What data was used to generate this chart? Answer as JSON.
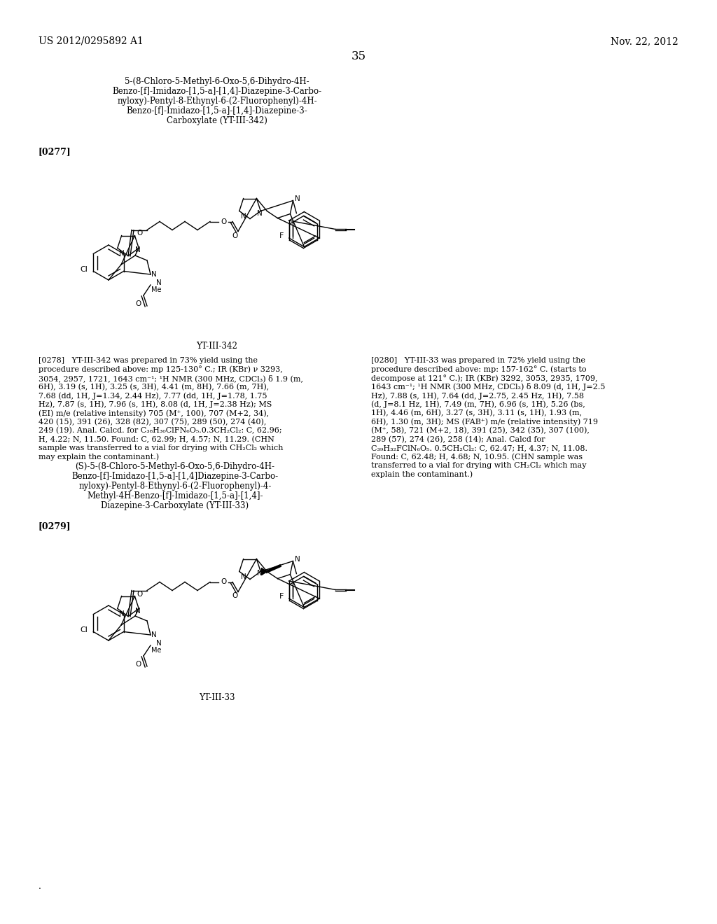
{
  "bg_color": "#ffffff",
  "header_left": "US 2012/0295892 A1",
  "header_right": "Nov. 22, 2012",
  "page_number": "35",
  "title1_lines": [
    "5-(8-Chloro-5-Methyl-6-Oxo-5,6-Dihydro-4H-",
    "Benzo-[f]-Imidazo-[1,5-a]-[1,4]-Diazepine-3-Carbo-",
    "nyloxy)-Pentyl-8-Ethynyl-6-(2-Fluorophenyl)-4H-",
    "Benzo-[f]-Imidazo-[1,5-a]-[1,4]-Diazepine-3-",
    "Carboxylate (YT-III-342)"
  ],
  "label_277": "[0277]",
  "compound_label1": "YT-III-342",
  "para_278_left": "[0278]   YT-III-342 was prepared in 73% yield using the procedure described above: mp 125-130° C.; IR (KBr) ν 3293, 3054, 2957, 1721, 1643 cm⁻¹; ¹H NMR (300 MHz, CDCl₃) δ 1.9 (m, 6H), 3.19 (s, 1H), 3.25 (s, 3H), 4.41 (m, 8H), 7.66 (m, 7H), 7.68 (dd, 1H, J=1.34, 2.44 Hz), 7.77 (dd, 1H, J=1.78, 1.75 Hz), 7.87 (s, 1H), 7.96 (s, 1H), 8.08 (d, 1H, J=2.38 Hz); MS (EI) m/e (relative intensity) 705 (M⁺, 100), 707 (M+2, 34), 420 (15), 391 (26), 328 (82), 307 (75), 289 (50), 274 (40), 249 (19). Anal. Calcd. for C₃₈H₃₀ClFN₆O₅.0.3CH₂Cl₂: C, 62.96; H, 4.22; N, 11.50. Found: C, 62.99; H, 4.57; N, 11.29. (CHN sample was transferred to a vial for drying with CH₂Cl₂ which may explain the contaminant.)",
  "para_280_right": "[0280]   YT-III-33 was prepared in 72% yield using the procedure described above: mp: 157-162° C. (starts to decompose at 121° C.); IR (KBr) 3292, 3053, 2935, 1709, 1643 cm⁻¹; ¹H NMR (300 MHz, CDCl₃) δ 8.09 (d, 1H, J=2.5 Hz), 7.88 (s, 1H), 7.64 (dd, J=2.75, 2.45 Hz, 1H), 7.58 (d, J=8.1 Hz, 1H), 7.49 (m, 7H), 6.96 (s, 1H), 5.26 (bs, 1H), 4.46 (m, 6H), 3.27 (s, 3H), 3.11 (s, 1H), 1.93 (m, 6H), 1.30 (m, 3H); MS (FAB⁺) m/e (relative intensity) 719 (M⁺, 58), 721 (M+2, 18), 391 (25), 342 (35), 307 (100), 289 (57), 274 (26), 258 (14); Anal. Calcd for C₃₉H₃₂FClN₆O₅. 0.5CH₂Cl₂: C, 62.47; H, 4.37; N, 11.08. Found: C, 62.48; H, 4.68; N, 10.95. (CHN sample was transferred to a vial for drying with CH₂Cl₂ which may explain the contaminant.)",
  "title2_lines": [
    "(S)-5-(8-Chloro-5-Methyl-6-Oxo-5,6-Dihydro-4H-",
    "Benzo-[f]-Imidazo-[1,5-a]-[1,4]Diazepine-3-Carbo-",
    "nyloxy)-Pentyl-8-Ethynyl-6-(2-Fluorophenyl)-4-",
    "Methyl-4H-Benzo-[f]-Imidazo-[1,5-a]-[1,4]-",
    "Diazepine-3-Carboxylate (YT-III-33)"
  ],
  "label_279": "[0279]",
  "compound_label2": "YT-III-33",
  "dot": "."
}
